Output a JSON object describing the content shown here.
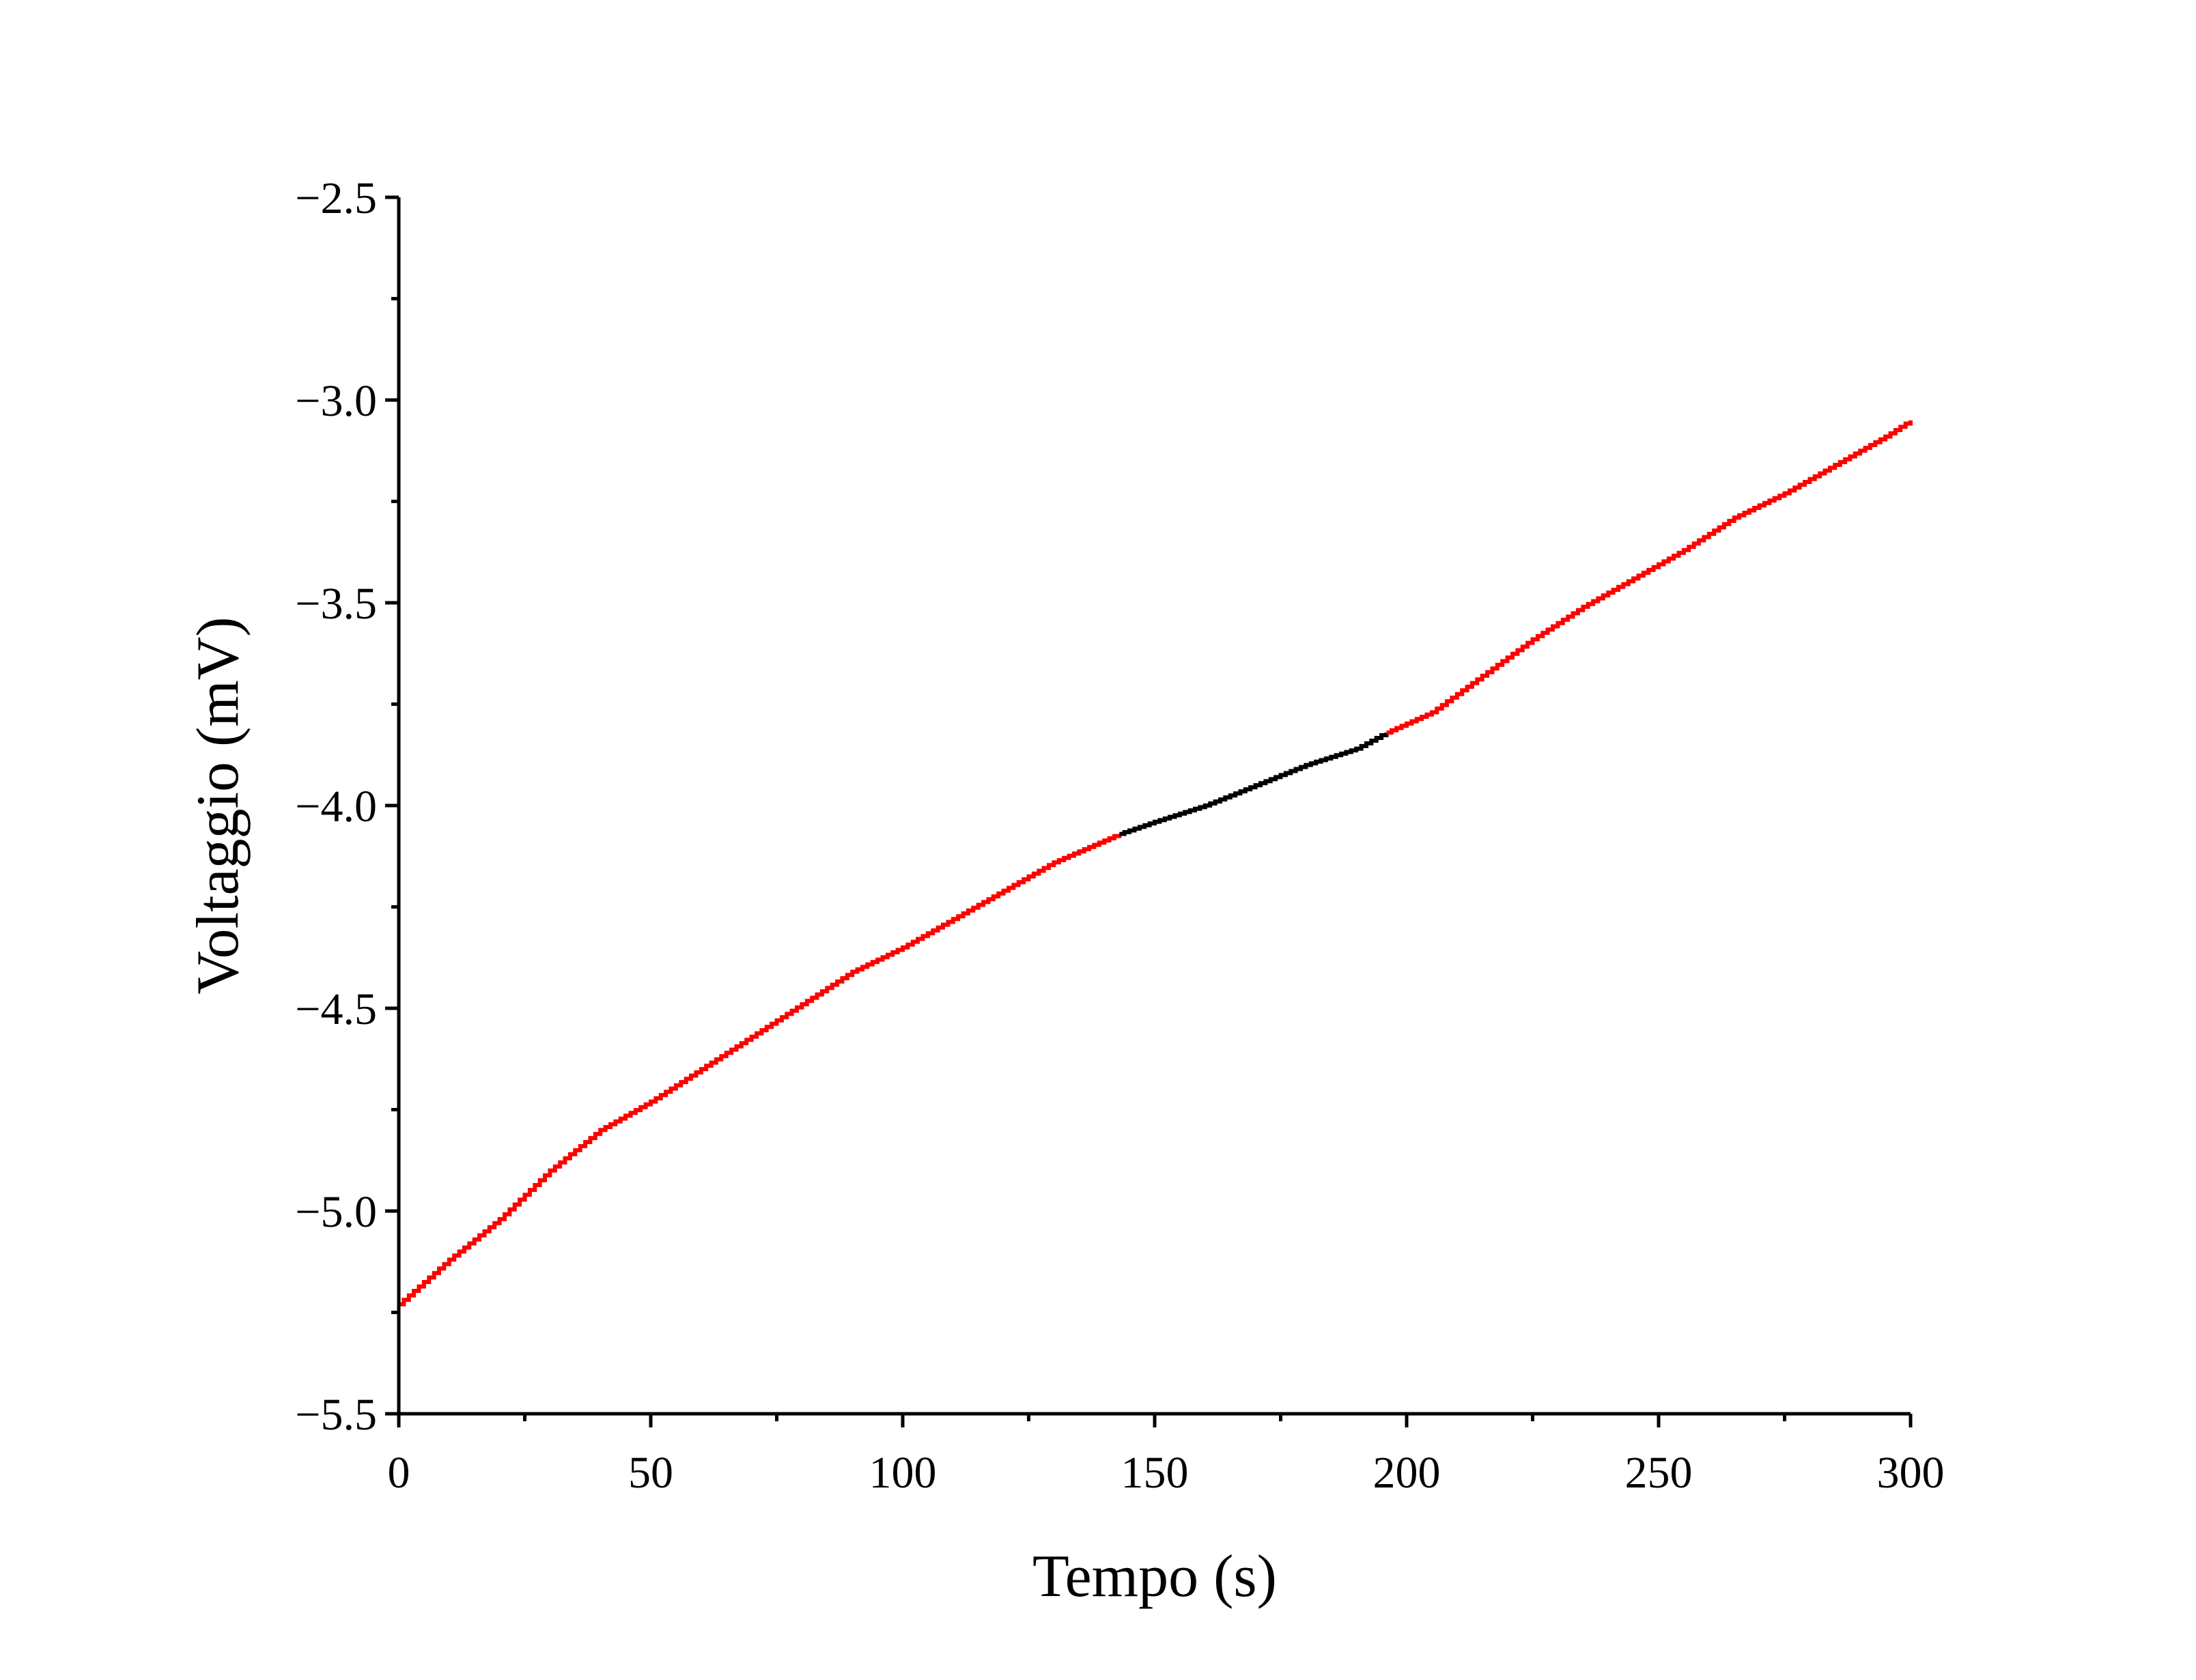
{
  "chart_data": {
    "type": "line",
    "title": "",
    "xlabel": "Tempo (s)",
    "ylabel": "Voltaggio (mV)",
    "xlim": [
      0,
      300
    ],
    "ylim": [
      -5.5,
      -2.5
    ],
    "x_ticks": [
      0,
      50,
      100,
      150,
      200,
      250,
      300
    ],
    "x_tick_labels": [
      "0",
      "50",
      "100",
      "150",
      "200",
      "250",
      "300"
    ],
    "y_ticks": [
      -5.5,
      -5.0,
      -4.5,
      -4.0,
      -3.5,
      -3.0,
      -2.5
    ],
    "y_tick_labels": [
      "−5.5",
      "−5.0",
      "−4.5",
      "−4.0",
      "−3.5",
      "−3.0",
      "−2.5"
    ],
    "grid": false,
    "legend": "none",
    "series": [
      {
        "color": "#ff0000",
        "x": [
          0,
          10,
          20,
          30,
          40,
          50,
          60,
          70,
          80,
          90,
          100,
          110,
          120,
          130,
          143
        ],
        "y": [
          -5.23,
          -5.12,
          -5.02,
          -4.9,
          -4.8,
          -4.73,
          -4.65,
          -4.57,
          -4.49,
          -4.41,
          -4.35,
          -4.28,
          -4.21,
          -4.14,
          -4.07
        ]
      },
      {
        "color": "#000000",
        "x": [
          143,
          150,
          160,
          170,
          180,
          190,
          196
        ],
        "y": [
          -4.07,
          -4.04,
          -4.0,
          -3.95,
          -3.9,
          -3.86,
          -3.82
        ]
      },
      {
        "color": "#ff0000",
        "x": [
          196,
          205,
          215,
          225,
          235,
          245,
          255,
          265,
          275,
          285,
          295,
          300
        ],
        "y": [
          -3.82,
          -3.77,
          -3.68,
          -3.59,
          -3.51,
          -3.44,
          -3.37,
          -3.29,
          -3.23,
          -3.16,
          -3.09,
          -3.05
        ]
      }
    ]
  }
}
